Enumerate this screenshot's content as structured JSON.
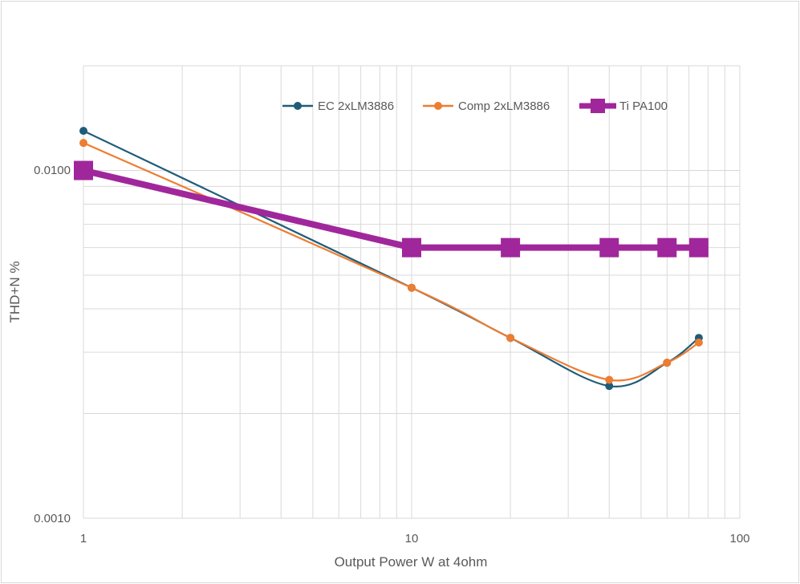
{
  "chart_data": {
    "type": "line",
    "title": "",
    "xlabel": "Output Power W at 4ohm",
    "ylabel": "THD+N  %",
    "x_scale": "log",
    "y_scale": "log",
    "xlim": [
      1,
      100
    ],
    "ylim": [
      0.001,
      0.02
    ],
    "grid": true,
    "legend_position": "top",
    "x_tick_labels": [
      "1",
      "10",
      "100"
    ],
    "y_tick_labels": [
      "0.0010",
      "0.0100"
    ],
    "series": [
      {
        "name": "EC 2xLM3886",
        "color": "#1f5c7a",
        "marker": "circle",
        "smooth": true,
        "x": [
          1,
          10,
          20,
          40,
          60,
          75
        ],
        "y": [
          0.013,
          0.0046,
          0.0033,
          0.0024,
          0.0028,
          0.0033
        ]
      },
      {
        "name": "Comp 2xLM3886",
        "color": "#ed7d31",
        "marker": "circle",
        "smooth": true,
        "x": [
          1,
          10,
          20,
          40,
          60,
          75
        ],
        "y": [
          0.012,
          0.0046,
          0.0033,
          0.0025,
          0.0028,
          0.0032
        ]
      },
      {
        "name": "Ti PA100",
        "color": "#a0279b",
        "marker": "square",
        "smooth": false,
        "x": [
          1,
          10,
          20,
          40,
          60,
          75
        ],
        "y": [
          0.01,
          0.006,
          0.006,
          0.006,
          0.006,
          0.006
        ]
      }
    ]
  }
}
